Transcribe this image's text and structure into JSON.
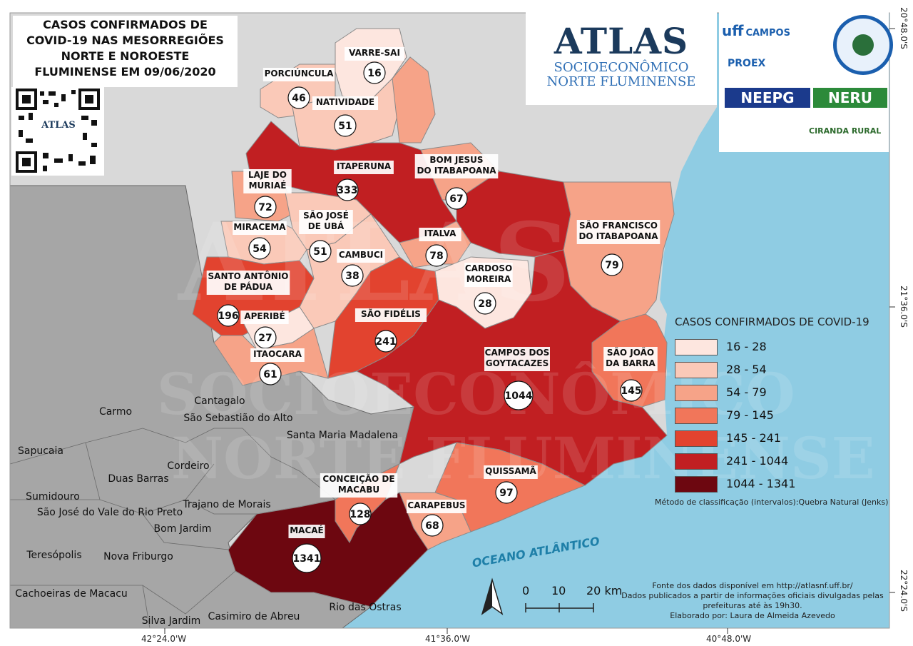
{
  "title_lines": [
    "CASOS CONFIRMADOS DE",
    "COVID-19 NAS MESORREGIÕES",
    "NORTE E NOROESTE",
    "FLUMINENSE EM 09/06/2020"
  ],
  "qr_label": "ATLAS",
  "atlas": {
    "title": "ATLAS",
    "sub1": "SOCIOECONÔMICO",
    "sub2": "NORTE FLUMINENSE"
  },
  "logos": {
    "uff": "uff",
    "campos": "CAMPOS",
    "proex": "PROEX",
    "neepg": "NEEPG",
    "neru": "NERU",
    "ciranda": "CIRANDA RURAL"
  },
  "coords": {
    "bottom": [
      "42°24.0'W",
      "41°36.0'W",
      "40°48.0'W"
    ],
    "right": [
      "20°48.0'S",
      "21°36.0'S",
      "22°24.0'S"
    ]
  },
  "legend": {
    "title": "CASOS CONFIRMADOS DE COVID-19",
    "classes": [
      {
        "label": "16 - 28",
        "color": "#fde6df"
      },
      {
        "label": "28 - 54",
        "color": "#fac9b8"
      },
      {
        "label": "54 - 79",
        "color": "#f6a388"
      },
      {
        "label": "79 - 145",
        "color": "#f1765a"
      },
      {
        "label": "145 - 241",
        "color": "#e2432f"
      },
      {
        "label": "241 - 1044",
        "color": "#c11f22"
      },
      {
        "label": "1044 - 1341",
        "color": "#6d0710"
      }
    ],
    "method": "Método de classificação (intervalos):Quebra Natural (Jenks)"
  },
  "credits": [
    "Fonte dos dados disponível em http://atlasnf.uff.br/",
    "Dados publicados a partir de informações oficiais divulgadas pelas",
    "prefeituras até às 19h30.",
    "Elaborado por: Laura de Almeida Azevedo"
  ],
  "scale": {
    "labels": [
      "0",
      "10",
      "20 km"
    ]
  },
  "ocean_label": "OCEANO ATLÂNTICO",
  "municipalities": [
    {
      "name": "VARRE-SAI",
      "cases": "16"
    },
    {
      "name": "PORCIÚNCULA",
      "cases": "46"
    },
    {
      "name": "NATIVIDADE",
      "cases": "51"
    },
    {
      "name": "ITAPERUNA",
      "cases": "333"
    },
    {
      "name": "BOM JESUS DO ITABAPOANA",
      "cases": "67"
    },
    {
      "name": "LAJE DO MURIAÉ",
      "cases": "72"
    },
    {
      "name": "SÃO JOSÉ DE UBÁ",
      "cases": "51"
    },
    {
      "name": "MIRACEMA",
      "cases": "54"
    },
    {
      "name": "ITALVA",
      "cases": "78"
    },
    {
      "name": "SÃO FRANCISCO DO ITABAPOANA",
      "cases": "79"
    },
    {
      "name": "CAMBUCI",
      "cases": "38"
    },
    {
      "name": "CARDOSO MOREIRA",
      "cases": "28"
    },
    {
      "name": "SANTO ANTÔNIO DE PÁDUA",
      "cases": "196"
    },
    {
      "name": "APERIBÉ",
      "cases": "27"
    },
    {
      "name": "SÃO FIDÉLIS",
      "cases": "241"
    },
    {
      "name": "ITAOCARA",
      "cases": "61"
    },
    {
      "name": "CAMPOS DOS GOYTACAZES",
      "cases": "1044"
    },
    {
      "name": "SÃO JOÃO DA BARRA",
      "cases": "145"
    },
    {
      "name": "CONCEIÇÃO DE MACABU",
      "cases": "128"
    },
    {
      "name": "QUISSAMÃ",
      "cases": "97"
    },
    {
      "name": "CARAPEBUS",
      "cases": "68"
    },
    {
      "name": "MACAÉ",
      "cases": "1341"
    }
  ],
  "neighbors": [
    "Cantagalo",
    "Carmo",
    "São Sebastião do Alto",
    "Santa Maria Madalena",
    "Sapucaia",
    "Cordeiro",
    "Duas Barras",
    "Sumidouro",
    "São José do Vale do Rio Preto",
    "Trajano de Morais",
    "Bom Jardim",
    "Teresópolis",
    "Nova Friburgo",
    "Cachoeiras de Macacu",
    "Silva Jardim",
    "Casimiro de Abreu",
    "Rio das Ostras"
  ]
}
